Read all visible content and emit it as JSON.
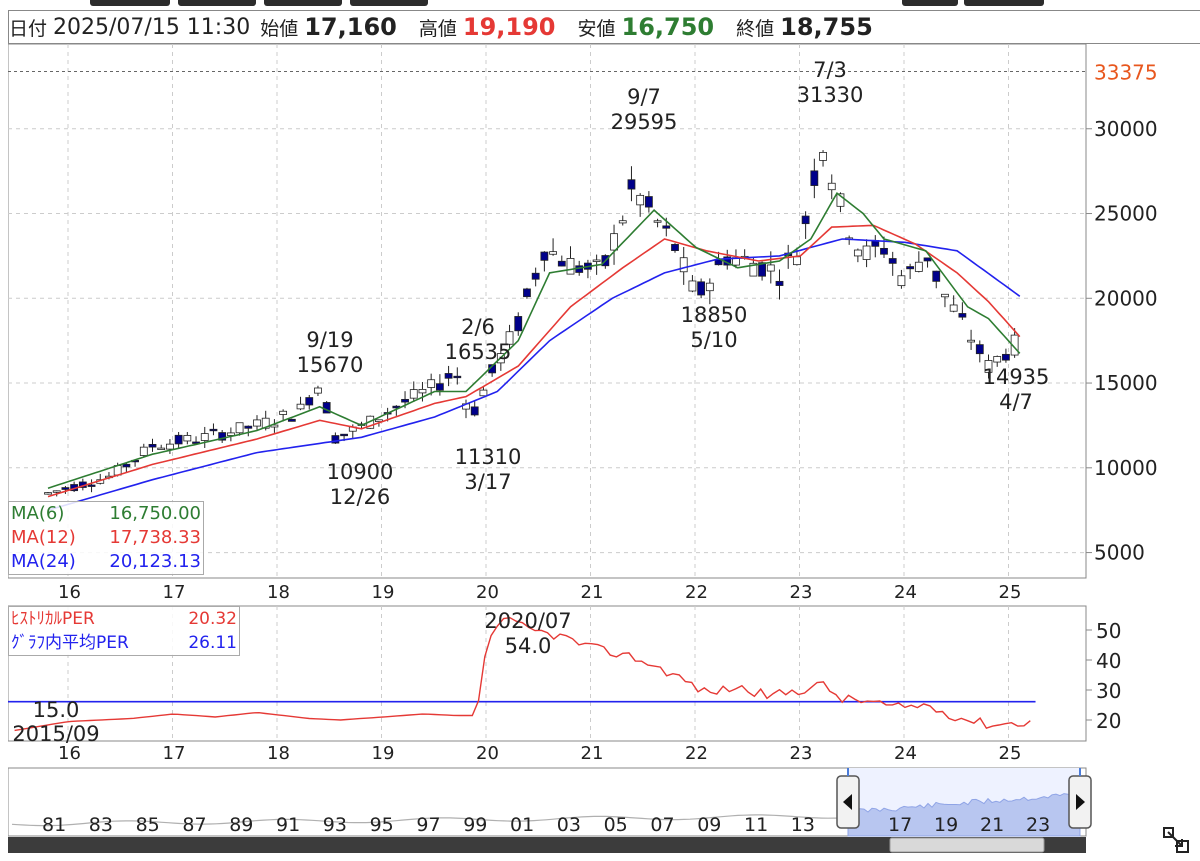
{
  "header": {
    "date_label": "日付",
    "date_value": "2025/07/15 11:30",
    "open_label": "始値",
    "open_value": "17,160",
    "high_label": "高値",
    "high_value": "19,190",
    "low_label": "安値",
    "low_value": "16,750",
    "close_label": "終値",
    "close_value": "18,755"
  },
  "colors": {
    "up_candle": "#ffffff",
    "down_candle": "#00008b",
    "ma6": "#2e7d32",
    "ma12": "#e53935",
    "ma24": "#2222ee",
    "per_line": "#e53935",
    "per_avg": "#2222ee",
    "high_price": "#e53935",
    "low_price": "#2e7d32",
    "navigator_fill": "#b8c6f0"
  },
  "ma_legend": [
    {
      "name": "MA(6)",
      "value": "16,750.00",
      "color": "#2e7d32"
    },
    {
      "name": "MA(12)",
      "value": "17,738.33",
      "color": "#e53935"
    },
    {
      "name": "MA(24)",
      "value": "20,123.13",
      "color": "#2222ee"
    }
  ],
  "per_legend": [
    {
      "name": "ﾋｽﾄﾘｶﾙPER",
      "value": "20.32",
      "color": "#e53935"
    },
    {
      "name": "ｸﾞﾗﾌ内平均PER",
      "value": "26.11",
      "color": "#2222ee"
    }
  ],
  "navigator": {
    "year_labels": [
      "81",
      "83",
      "85",
      "87",
      "89",
      "91",
      "93",
      "95",
      "97",
      "99",
      "01",
      "03",
      "05",
      "07",
      "09",
      "11",
      "13",
      "17",
      "19",
      "21",
      "23"
    ],
    "left_arrow_icon": "triangle-left",
    "right_arrow_icon": "triangle-right",
    "expand_icon": "expand-icon"
  },
  "chart_data": [
    {
      "type": "candlestick",
      "title": "",
      "x_tick_labels": [
        "16",
        "17",
        "18",
        "19",
        "20",
        "21",
        "22",
        "23",
        "24",
        "25"
      ],
      "y_ticks": [
        5000,
        10000,
        15000,
        20000,
        25000,
        30000
      ],
      "ylim": [
        3500,
        35000
      ],
      "max_line": {
        "value": 33375,
        "label": "33375"
      },
      "annotations": [
        {
          "date": "9/19",
          "value": "15670"
        },
        {
          "date": "12/26",
          "value": "10900"
        },
        {
          "date": "2/6",
          "value": "16535"
        },
        {
          "date": "3/17",
          "value": "11310"
        },
        {
          "date": "9/7",
          "value": "29595"
        },
        {
          "date": "5/10",
          "value": "18850"
        },
        {
          "date": "7/3",
          "value": "31330"
        },
        {
          "date": "4/7",
          "value": "14935"
        }
      ],
      "anchors": [
        {
          "t": 0.0,
          "v": 8500
        },
        {
          "t": 0.6,
          "v": 9500
        },
        {
          "t": 1.0,
          "v": 11300
        },
        {
          "t": 1.5,
          "v": 11800
        },
        {
          "t": 2.0,
          "v": 12500
        },
        {
          "t": 2.4,
          "v": 13300
        },
        {
          "t": 2.6,
          "v": 15000
        },
        {
          "t": 2.75,
          "v": 11800
        },
        {
          "t": 3.0,
          "v": 12400
        },
        {
          "t": 3.3,
          "v": 13500
        },
        {
          "t": 3.7,
          "v": 14800
        },
        {
          "t": 3.9,
          "v": 15700
        },
        {
          "t": 4.05,
          "v": 13000
        },
        {
          "t": 4.2,
          "v": 15000
        },
        {
          "t": 4.5,
          "v": 18500
        },
        {
          "t": 4.75,
          "v": 23000
        },
        {
          "t": 5.0,
          "v": 22000
        },
        {
          "t": 5.3,
          "v": 21500
        },
        {
          "t": 5.6,
          "v": 26500
        },
        {
          "t": 6.0,
          "v": 23000
        },
        {
          "t": 6.2,
          "v": 20000
        },
        {
          "t": 6.5,
          "v": 22500
        },
        {
          "t": 6.8,
          "v": 22000
        },
        {
          "t": 7.0,
          "v": 21500
        },
        {
          "t": 7.2,
          "v": 23000
        },
        {
          "t": 7.4,
          "v": 29500
        },
        {
          "t": 7.6,
          "v": 25000
        },
        {
          "t": 7.8,
          "v": 22500
        },
        {
          "t": 8.0,
          "v": 23000
        },
        {
          "t": 8.2,
          "v": 21000
        },
        {
          "t": 8.4,
          "v": 22800
        },
        {
          "t": 8.55,
          "v": 20500
        },
        {
          "t": 8.75,
          "v": 18500
        },
        {
          "t": 9.0,
          "v": 16000
        },
        {
          "t": 9.3,
          "v": 17500
        }
      ],
      "ma_anchors": {
        "ma6": [
          {
            "t": 0.0,
            "v": 8800
          },
          {
            "t": 1.0,
            "v": 10800
          },
          {
            "t": 2.0,
            "v": 12200
          },
          {
            "t": 2.6,
            "v": 13600
          },
          {
            "t": 3.0,
            "v": 12500
          },
          {
            "t": 3.7,
            "v": 14500
          },
          {
            "t": 4.0,
            "v": 14500
          },
          {
            "t": 4.5,
            "v": 17500
          },
          {
            "t": 4.8,
            "v": 21500
          },
          {
            "t": 5.3,
            "v": 22000
          },
          {
            "t": 5.8,
            "v": 25200
          },
          {
            "t": 6.2,
            "v": 23000
          },
          {
            "t": 6.6,
            "v": 21800
          },
          {
            "t": 7.0,
            "v": 22200
          },
          {
            "t": 7.3,
            "v": 23500
          },
          {
            "t": 7.55,
            "v": 26200
          },
          {
            "t": 7.8,
            "v": 25000
          },
          {
            "t": 8.0,
            "v": 23500
          },
          {
            "t": 8.4,
            "v": 22800
          },
          {
            "t": 8.8,
            "v": 19500
          },
          {
            "t": 9.0,
            "v": 18800
          },
          {
            "t": 9.3,
            "v": 16750
          }
        ],
        "ma12": [
          {
            "t": 0.0,
            "v": 8300
          },
          {
            "t": 1.0,
            "v": 10200
          },
          {
            "t": 2.0,
            "v": 11700
          },
          {
            "t": 2.6,
            "v": 12800
          },
          {
            "t": 3.0,
            "v": 12300
          },
          {
            "t": 3.7,
            "v": 13800
          },
          {
            "t": 4.0,
            "v": 14200
          },
          {
            "t": 4.5,
            "v": 16000
          },
          {
            "t": 5.0,
            "v": 19500
          },
          {
            "t": 5.5,
            "v": 21800
          },
          {
            "t": 5.9,
            "v": 23500
          },
          {
            "t": 6.3,
            "v": 22800
          },
          {
            "t": 6.8,
            "v": 22200
          },
          {
            "t": 7.2,
            "v": 22500
          },
          {
            "t": 7.5,
            "v": 24200
          },
          {
            "t": 7.9,
            "v": 24300
          },
          {
            "t": 8.3,
            "v": 23200
          },
          {
            "t": 8.7,
            "v": 21500
          },
          {
            "t": 9.0,
            "v": 19800
          },
          {
            "t": 9.3,
            "v": 17740
          }
        ],
        "ma24": [
          {
            "t": 0.0,
            "v": 7500
          },
          {
            "t": 1.0,
            "v": 9300
          },
          {
            "t": 2.0,
            "v": 10900
          },
          {
            "t": 3.0,
            "v": 11800
          },
          {
            "t": 3.7,
            "v": 13000
          },
          {
            "t": 4.3,
            "v": 14500
          },
          {
            "t": 4.8,
            "v": 17500
          },
          {
            "t": 5.4,
            "v": 20000
          },
          {
            "t": 5.9,
            "v": 21500
          },
          {
            "t": 6.4,
            "v": 22300
          },
          {
            "t": 7.0,
            "v": 22500
          },
          {
            "t": 7.6,
            "v": 23500
          },
          {
            "t": 8.2,
            "v": 23300
          },
          {
            "t": 8.7,
            "v": 22800
          },
          {
            "t": 9.3,
            "v": 20120
          }
        ]
      }
    },
    {
      "type": "line",
      "title": "",
      "x_tick_labels": [
        "16",
        "17",
        "18",
        "19",
        "20",
        "21",
        "22",
        "23",
        "24",
        "25"
      ],
      "y_ticks": [
        20,
        30,
        40,
        50
      ],
      "ylim": [
        13,
        58
      ],
      "avg_value": 26.11,
      "current_value": 20.32,
      "annotations": [
        {
          "label": "2020/07",
          "value": "54.0"
        },
        {
          "label": "2015/09",
          "value": "15.0"
        }
      ],
      "per_anchors": [
        {
          "t": -0.5,
          "v": 15.5
        },
        {
          "t": 0.2,
          "v": 19.5
        },
        {
          "t": 0.8,
          "v": 20.5
        },
        {
          "t": 1.2,
          "v": 22
        },
        {
          "t": 1.6,
          "v": 21
        },
        {
          "t": 2.0,
          "v": 22.5
        },
        {
          "t": 2.5,
          "v": 20.5
        },
        {
          "t": 2.8,
          "v": 20
        },
        {
          "t": 3.2,
          "v": 21
        },
        {
          "t": 3.6,
          "v": 22
        },
        {
          "t": 3.9,
          "v": 21.5
        },
        {
          "t": 4.1,
          "v": 21.5
        },
        {
          "t": 4.2,
          "v": 46
        },
        {
          "t": 4.35,
          "v": 54
        },
        {
          "t": 4.6,
          "v": 50
        },
        {
          "t": 4.9,
          "v": 48
        },
        {
          "t": 5.2,
          "v": 44
        },
        {
          "t": 5.6,
          "v": 41
        },
        {
          "t": 6.0,
          "v": 35
        },
        {
          "t": 6.3,
          "v": 29
        },
        {
          "t": 6.6,
          "v": 31
        },
        {
          "t": 6.9,
          "v": 28
        },
        {
          "t": 7.2,
          "v": 30
        },
        {
          "t": 7.4,
          "v": 32
        },
        {
          "t": 7.6,
          "v": 27
        },
        {
          "t": 7.9,
          "v": 26
        },
        {
          "t": 8.1,
          "v": 24
        },
        {
          "t": 8.4,
          "v": 25
        },
        {
          "t": 8.7,
          "v": 21
        },
        {
          "t": 9.0,
          "v": 18.5
        },
        {
          "t": 9.3,
          "v": 19
        },
        {
          "t": 9.45,
          "v": 20.3
        }
      ]
    }
  ]
}
